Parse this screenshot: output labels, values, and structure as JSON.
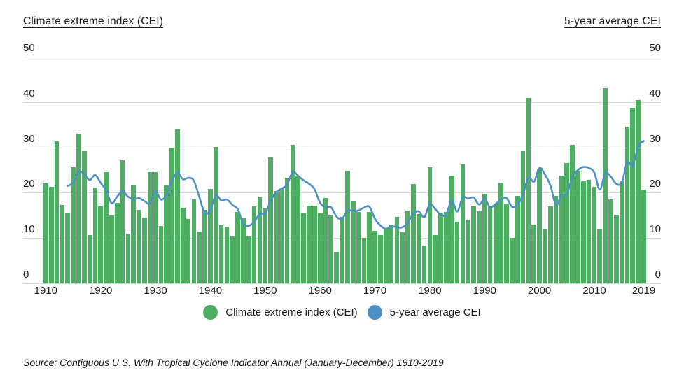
{
  "header": {
    "left_title": "Climate extreme index (CEI)",
    "right_title": "5-year average CEI"
  },
  "legend": {
    "items": [
      {
        "label": "Climate extreme index (CEI)",
        "color": "#4dae63",
        "swatch": "circle"
      },
      {
        "label": "5-year average CEI",
        "color": "#4a90c4",
        "swatch": "circle"
      }
    ]
  },
  "source_note": "Source: Contiguous U.S. With Tropical Cyclone Indicator Annual (January-December) 1910-2019",
  "colors": {
    "bar_green": "#4dae63",
    "line_blue": "#4a90c4",
    "gridline": "#d7d7d7",
    "text": "#1a1a1a",
    "background": "#ffffff"
  },
  "chart_data": {
    "type": "bar",
    "title": "Climate extreme index (CEI)",
    "start_year": 1910,
    "end_year": 2019,
    "ylim": [
      0,
      50
    ],
    "yticks": [
      0,
      10,
      20,
      30,
      40,
      50
    ],
    "xticks": [
      1910,
      1920,
      1930,
      1940,
      1950,
      1960,
      1970,
      1980,
      1990,
      2000,
      2010,
      2019
    ],
    "grid": true,
    "legend_position": "bottom",
    "series": [
      {
        "name": "Climate extreme index (CEI)",
        "type": "bar",
        "color": "#4dae63",
        "values": [
          22.0,
          21.3,
          31.4,
          17.3,
          15.6,
          25.6,
          33.0,
          29.2,
          10.6,
          21.2,
          17.0,
          24.6,
          15.0,
          17.8,
          27.2,
          11.0,
          21.8,
          16.2,
          14.5,
          24.5,
          24.5,
          12.6,
          21.6,
          29.9,
          34.0,
          16.7,
          14.2,
          18.5,
          11.5,
          16.2,
          20.8,
          30.1,
          12.8,
          12.5,
          10.4,
          15.8,
          14.3,
          10.4,
          17.0,
          19.0,
          16.5,
          27.8,
          20.4,
          20.8,
          23.3,
          30.5,
          23.6,
          15.4,
          17.1,
          17.2,
          15.5,
          18.8,
          15.2,
          6.9,
          14.6,
          24.9,
          18.1,
          15.8,
          10.0,
          15.7,
          11.6,
          10.6,
          12.2,
          12.9,
          14.7,
          11.3,
          16.1,
          21.9,
          15.3,
          8.4,
          25.7,
          10.7,
          15.4,
          15.8,
          23.7,
          13.6,
          26.2,
          14.1,
          17.1,
          15.9,
          19.8,
          17.0,
          17.6,
          22.2,
          17.5,
          10.0,
          19.3,
          29.1,
          40.9,
          12.9,
          25.2,
          11.9,
          17.0,
          19.3,
          23.8,
          26.6,
          30.6,
          24.7,
          22.6,
          22.9,
          21.3,
          11.9,
          43.0,
          18.6,
          15.1,
          22.6,
          34.5,
          38.7,
          40.5,
          20.7
        ]
      },
      {
        "name": "5-year average CEI",
        "type": "line",
        "color": "#4a90c4",
        "window": 5,
        "derivation": "trailing 5-year moving average of the annual CEI values, plotted from 1914 through 2019"
      }
    ]
  }
}
